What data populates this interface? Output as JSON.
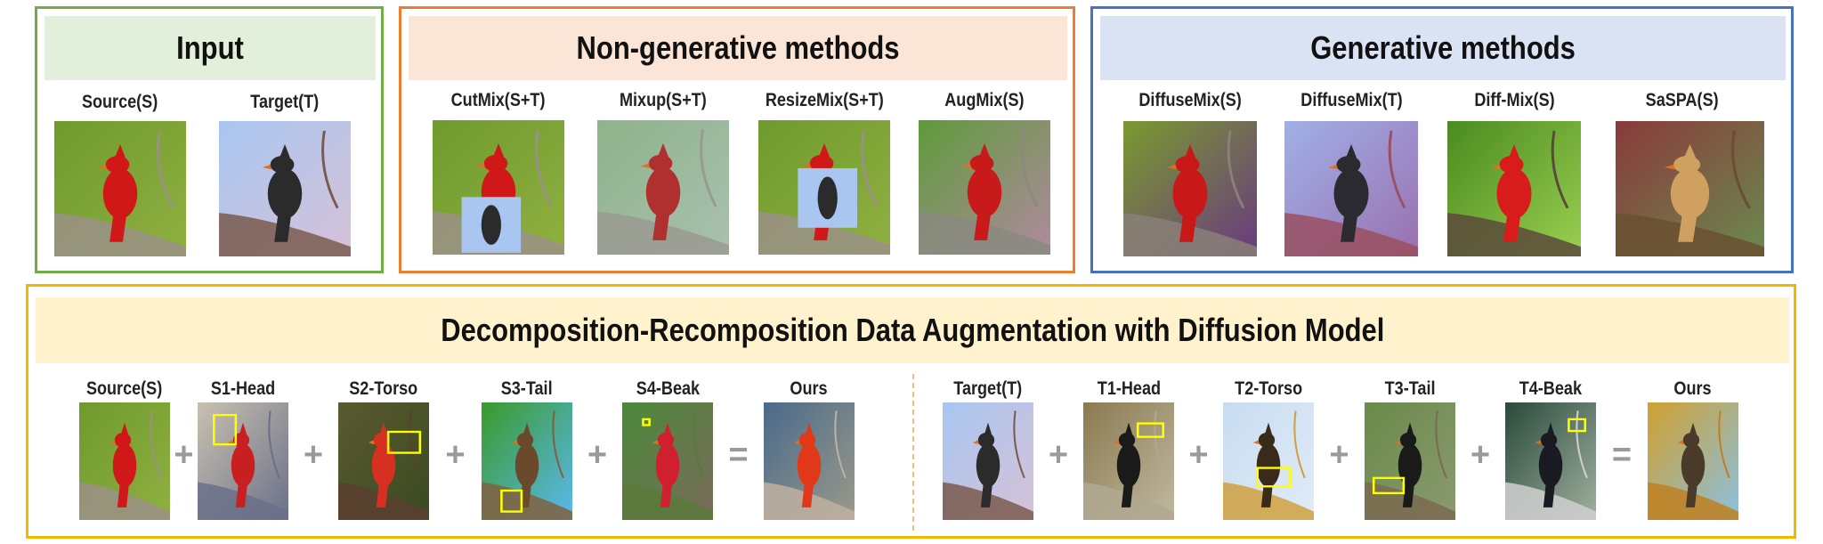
{
  "panels": {
    "input": {
      "title": "Input",
      "border_color": "#70ad47",
      "band_color": "#e2efda",
      "items": [
        {
          "label": "Source(S)"
        },
        {
          "label": "Target(T)"
        }
      ]
    },
    "non_generative": {
      "title": "Non-generative methods",
      "border_color": "#ed7d31",
      "band_color": "#fbe5d6",
      "items": [
        {
          "label": "CutMix(S+T)"
        },
        {
          "label": "Mixup(S+T)"
        },
        {
          "label": "ResizeMix(S+T)"
        },
        {
          "label": "AugMix(S)"
        }
      ]
    },
    "generative": {
      "title": "Generative methods",
      "border_color": "#4472c4",
      "band_color": "#dae3f3",
      "items": [
        {
          "label": "DiffuseMix(S)"
        },
        {
          "label": "DiffuseMix(T)"
        },
        {
          "label": "Diff-Mix(S)"
        },
        {
          "label": "SaSPA(S)"
        }
      ]
    },
    "ours": {
      "title": "Decomposition-Recomposition Data Augmentation with Diffusion Model",
      "border_color": "#f2b800",
      "band_color": "#fff2cc",
      "source_items": [
        {
          "label": "Source(S)"
        },
        {
          "label": "S1-Head"
        },
        {
          "label": "S2-Torso"
        },
        {
          "label": "S3-Tail"
        },
        {
          "label": "S4-Beak"
        },
        {
          "label": "Ours"
        }
      ],
      "target_items": [
        {
          "label": "Target(T)"
        },
        {
          "label": "T1-Head"
        },
        {
          "label": "T2-Torso"
        },
        {
          "label": "T3-Tail"
        },
        {
          "label": "T4-Beak"
        },
        {
          "label": "Ours"
        }
      ],
      "operators": [
        "+",
        "+",
        "+",
        "+",
        "="
      ],
      "highlight_color": "#ffff00"
    }
  }
}
